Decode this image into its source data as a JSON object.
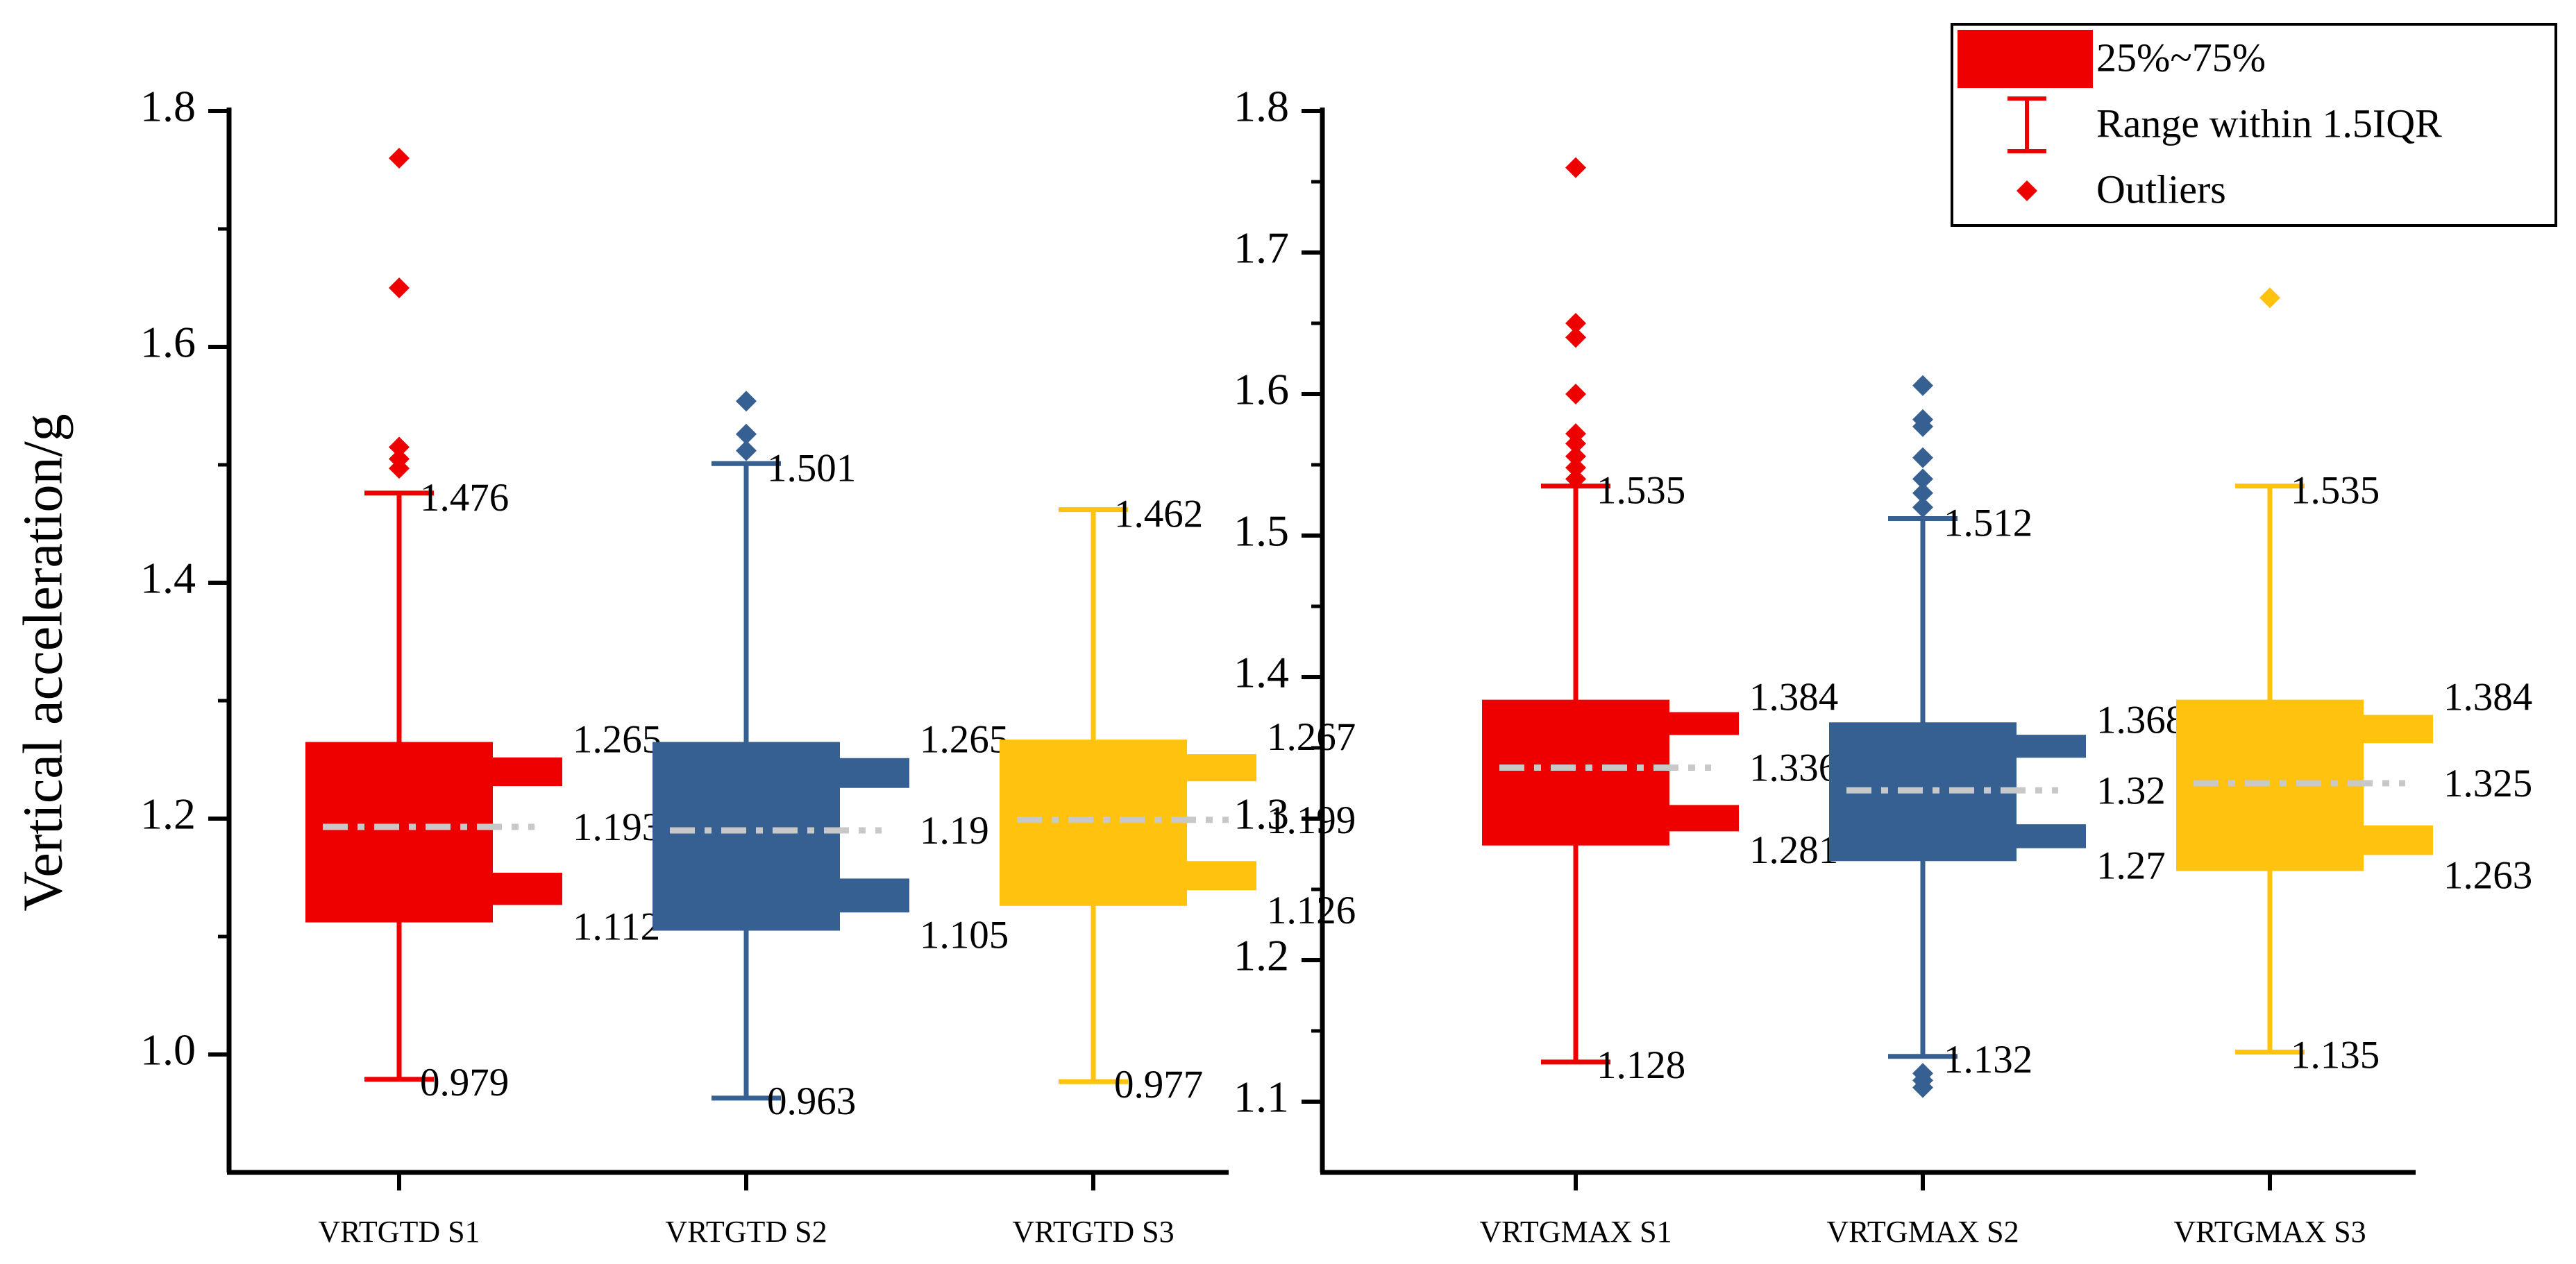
{
  "chart_data": [
    {
      "type": "box",
      "ylabel": "Vertical acceleration/g",
      "ylim": [
        0.9,
        1.8
      ],
      "yticks": [
        "1.0",
        "1.2",
        "1.4",
        "1.6",
        "1.8"
      ],
      "categories": [
        "VRTGTD S1",
        "VRTGTD S2",
        "VRTGTD S3"
      ],
      "boxes": [
        {
          "name": "VRTGTD S1",
          "color": "#ee0000",
          "whisker_low": 0.979,
          "q1": 1.112,
          "median": 1.193,
          "q3": 1.265,
          "whisker_high": 1.476,
          "labels": {
            "whisker_low": "0.979",
            "q1": "1.112",
            "median": "1.193",
            "q3": "1.265",
            "whisker_high": "1.476"
          },
          "outliers": [
            1.497,
            1.505,
            1.515,
            1.65,
            1.76
          ]
        },
        {
          "name": "VRTGTD S2",
          "color": "#376092",
          "whisker_low": 0.963,
          "q1": 1.105,
          "median": 1.19,
          "q3": 1.265,
          "whisker_high": 1.501,
          "labels": {
            "whisker_low": "0.963",
            "q1": "1.105",
            "median": "1.19",
            "q3": "1.265",
            "whisker_high": "1.501"
          },
          "outliers": [
            1.512,
            1.526,
            1.554
          ]
        },
        {
          "name": "VRTGTD S3",
          "color": "#ffc20e",
          "whisker_low": 0.977,
          "q1": 1.126,
          "median": 1.199,
          "q3": 1.267,
          "whisker_high": 1.462,
          "labels": {
            "whisker_low": "0.977",
            "q1": "1.126",
            "median": "1.199",
            "q3": "1.267",
            "whisker_high": "1.462"
          },
          "outliers": []
        }
      ]
    },
    {
      "type": "box",
      "ylim": [
        1.05,
        1.8
      ],
      "yticks": [
        "1.1",
        "1.2",
        "1.3",
        "1.4",
        "1.5",
        "1.6",
        "1.7",
        "1.8"
      ],
      "categories": [
        "VRTGMAX S1",
        "VRTGMAX S2",
        "VRTGMAX S3"
      ],
      "boxes": [
        {
          "name": "VRTGMAX S1",
          "color": "#ee0000",
          "whisker_low": 1.128,
          "q1": 1.281,
          "median": 1.336,
          "q3": 1.384,
          "whisker_high": 1.535,
          "labels": {
            "whisker_low": "1.128",
            "q1": "1.281",
            "median": "1.336",
            "q3": "1.384",
            "whisker_high": "1.535"
          },
          "outliers": [
            1.54,
            1.548,
            1.556,
            1.565,
            1.572,
            1.6,
            1.64,
            1.65,
            1.76
          ]
        },
        {
          "name": "VRTGMAX S2",
          "color": "#376092",
          "whisker_low": 1.132,
          "q1": 1.27,
          "median": 1.32,
          "q3": 1.368,
          "whisker_high": 1.512,
          "labels": {
            "whisker_low": "1.132",
            "q1": "1.27",
            "median": "1.32",
            "q3": "1.368",
            "whisker_high": "1.512"
          },
          "outliers": [
            1.11,
            1.115,
            1.12,
            1.52,
            1.53,
            1.54,
            1.555,
            1.577,
            1.582,
            1.606
          ]
        },
        {
          "name": "VRTGMAX S3",
          "color": "#ffc20e",
          "whisker_low": 1.135,
          "q1": 1.263,
          "median": 1.325,
          "q3": 1.384,
          "whisker_high": 1.535,
          "labels": {
            "whisker_low": "1.135",
            "q1": "1.263",
            "median": "1.325",
            "q3": "1.384",
            "whisker_high": "1.535"
          },
          "outliers": [
            1.668
          ]
        }
      ]
    }
  ],
  "legend": {
    "placement": "top-right",
    "items": [
      {
        "label": "25%~75%",
        "symbol": "box",
        "color": "#ee0000"
      },
      {
        "label": "Range within 1.5IQR",
        "symbol": "whisker",
        "color": "#ee0000"
      },
      {
        "label": "Outliers",
        "symbol": "diamond",
        "color": "#ee0000"
      }
    ]
  },
  "colors": {
    "median_line": "#c8c8c8",
    "axis": "#000000"
  }
}
